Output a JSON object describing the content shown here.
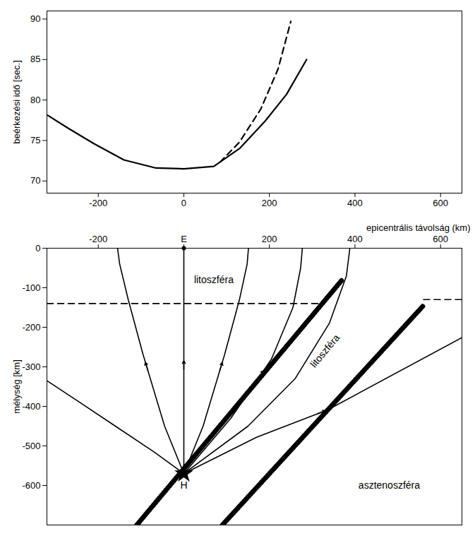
{
  "chart_data": [
    {
      "type": "line",
      "y_label": "beérkezési idő [sec.]",
      "xlim": [
        -320,
        650
      ],
      "xticks": [
        -200,
        0,
        200,
        400,
        600
      ],
      "ylim": [
        68.5,
        91
      ],
      "yticks": [
        70,
        75,
        80,
        85,
        90
      ],
      "grid": false,
      "series": [
        {
          "line_style": "solid",
          "color": "#000000",
          "x": [
            -318,
            -270,
            -210,
            -140,
            -65,
            0,
            70,
            130,
            190,
            240,
            287
          ],
          "values": [
            78.1,
            76.5,
            74.6,
            72.6,
            71.6,
            71.5,
            71.8,
            74.0,
            77.4,
            80.7,
            85.0
          ]
        },
        {
          "line_style": "dashed",
          "color": "#000000",
          "x": [
            84,
            130,
            180,
            220,
            250
          ],
          "values": [
            72.3,
            74.8,
            78.9,
            83.8,
            89.7
          ]
        }
      ]
    },
    {
      "type": "line",
      "x_label": "epicentrális távolság (km)",
      "y_label": "mélység [km]",
      "xlim": [
        -320,
        650
      ],
      "xticks": [
        -200,
        {
          "value": 0,
          "label": "E"
        },
        200,
        400,
        600
      ],
      "ylim": [
        -700,
        0
      ],
      "yticks": [
        -600,
        -500,
        -400,
        -300,
        -200,
        -100,
        0
      ],
      "grid": false,
      "series": [
        {
          "line_style": "solid",
          "color": "#000000",
          "x": [
            0,
            -70,
            -160,
            -250,
            -320
          ],
          "values": [
            -570,
            -515,
            -450,
            -385,
            -335
          ]
        },
        {
          "line_style": "solid",
          "color": "#000000",
          "marker": "arrow",
          "x": [
            0,
            -45,
            -95,
            -130,
            -150,
            -155
          ],
          "values": [
            -570,
            -450,
            -270,
            -130,
            -40,
            0
          ]
        },
        {
          "line_style": "solid",
          "color": "#000000",
          "marker": "arrow",
          "x": [
            0,
            0,
            0,
            0
          ],
          "values": [
            -570,
            -400,
            -250,
            0
          ]
        },
        {
          "line_style": "solid",
          "color": "#000000",
          "marker": "arrow",
          "x": [
            0,
            45,
            95,
            130,
            148,
            151
          ],
          "values": [
            -570,
            -450,
            -270,
            -130,
            -40,
            0
          ]
        },
        {
          "line_style": "solid",
          "color": "#000000",
          "marker": "arrow",
          "x": [
            0,
            110,
            205,
            255,
            273,
            277
          ],
          "values": [
            -570,
            -430,
            -280,
            -150,
            -50,
            0
          ]
        },
        {
          "line_style": "solid",
          "color": "#000000",
          "x": [
            0,
            150,
            260,
            340,
            380,
            388
          ],
          "values": [
            -570,
            -450,
            -330,
            -190,
            -70,
            0
          ]
        },
        {
          "line_style": "solid",
          "color": "#000000",
          "marker": "arrow",
          "x": [
            0,
            170,
            336,
            650
          ],
          "values": [
            -570,
            -478,
            -409,
            -226
          ]
        },
        {
          "line_style": "dashed",
          "color": "#000000",
          "x": [
            -320,
            323
          ],
          "values": [
            -140,
            -140
          ]
        },
        {
          "line_style": "dashed",
          "color": "#000000",
          "x": [
            560,
            650
          ],
          "values": [
            -130,
            -130
          ]
        },
        {
          "line_style": "hatched",
          "color": "#000000",
          "x": [
            -110,
            370
          ],
          "values": [
            -700,
            -80
          ]
        },
        {
          "line_style": "hatched",
          "color": "#000000",
          "x": [
            90,
            560
          ],
          "values": [
            -700,
            -145
          ]
        }
      ],
      "points": [
        {
          "label": "H",
          "x": 0,
          "y": -570,
          "marker": "star"
        },
        {
          "x": 0,
          "y": 0,
          "marker": "dot"
        }
      ],
      "annotations": [
        {
          "text": "litoszféra",
          "x": 70,
          "y": -80
        },
        {
          "text": "litoszféra",
          "x": 330,
          "y": -260
        },
        {
          "text": "asztenoszféra",
          "x": 480,
          "y": -600
        }
      ]
    }
  ]
}
